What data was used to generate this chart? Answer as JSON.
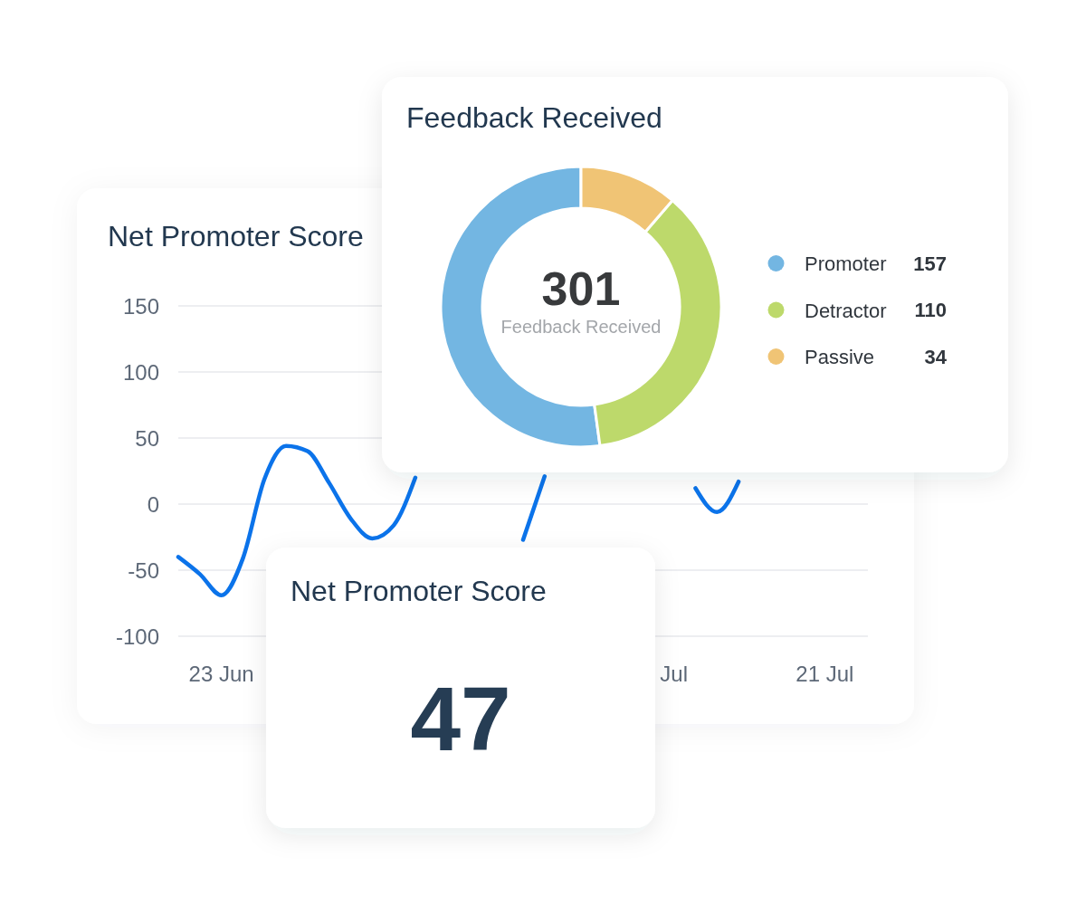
{
  "chart_data": [
    {
      "type": "donut",
      "title": "Feedback Received",
      "categories": [
        "Promoter",
        "Detractor",
        "Passive"
      ],
      "values": [
        157,
        110,
        34
      ],
      "colors": [
        "#73b6e2",
        "#bdd96b",
        "#f0c475"
      ],
      "legend": "right",
      "data_labels": true,
      "annotations": [
        "301",
        "Feedback Received"
      ]
    },
    {
      "type": "line",
      "title": "Net Promoter Score",
      "x": [
        "--06-21",
        "--06-22",
        "--06-23",
        "--06-24",
        "--06-25",
        "--06-26",
        "--06-27",
        "--06-28",
        "--06-29",
        "--06-30",
        "--07-01",
        "--07-02",
        "--07-03",
        "--07-04",
        "--07-05",
        "--07-06",
        "--07-07",
        "--07-08",
        "--07-09",
        "--07-10",
        "--07-11",
        "--07-12",
        "--07-13",
        "--07-14",
        "--07-15",
        "--07-16",
        "--07-17"
      ],
      "series": [
        {
          "color": "#0b73ea",
          "values": [
            -40,
            -53,
            -69,
            -41,
            19,
            44,
            40,
            16,
            -11,
            -26,
            -16,
            20,
            null,
            null,
            null,
            null,
            -27,
            21,
            null,
            null,
            null,
            null,
            null,
            null,
            12,
            -6,
            17
          ]
        }
      ],
      "xlim": [
        "--06-21",
        "--07-23"
      ],
      "ylim": [
        -100,
        150
      ],
      "xticks": [
        {
          "value": "--06-23",
          "label": "23 Jun"
        },
        {
          "value": "--07-14",
          "label": "Jul"
        },
        {
          "value": "--07-21",
          "label": "21 Jul"
        }
      ],
      "yticks": [
        -100,
        -50,
        0,
        50,
        100,
        150
      ],
      "grid": "y"
    },
    {
      "type": "other",
      "title": "Net Promoter Score",
      "annotations": [
        "47"
      ]
    }
  ]
}
